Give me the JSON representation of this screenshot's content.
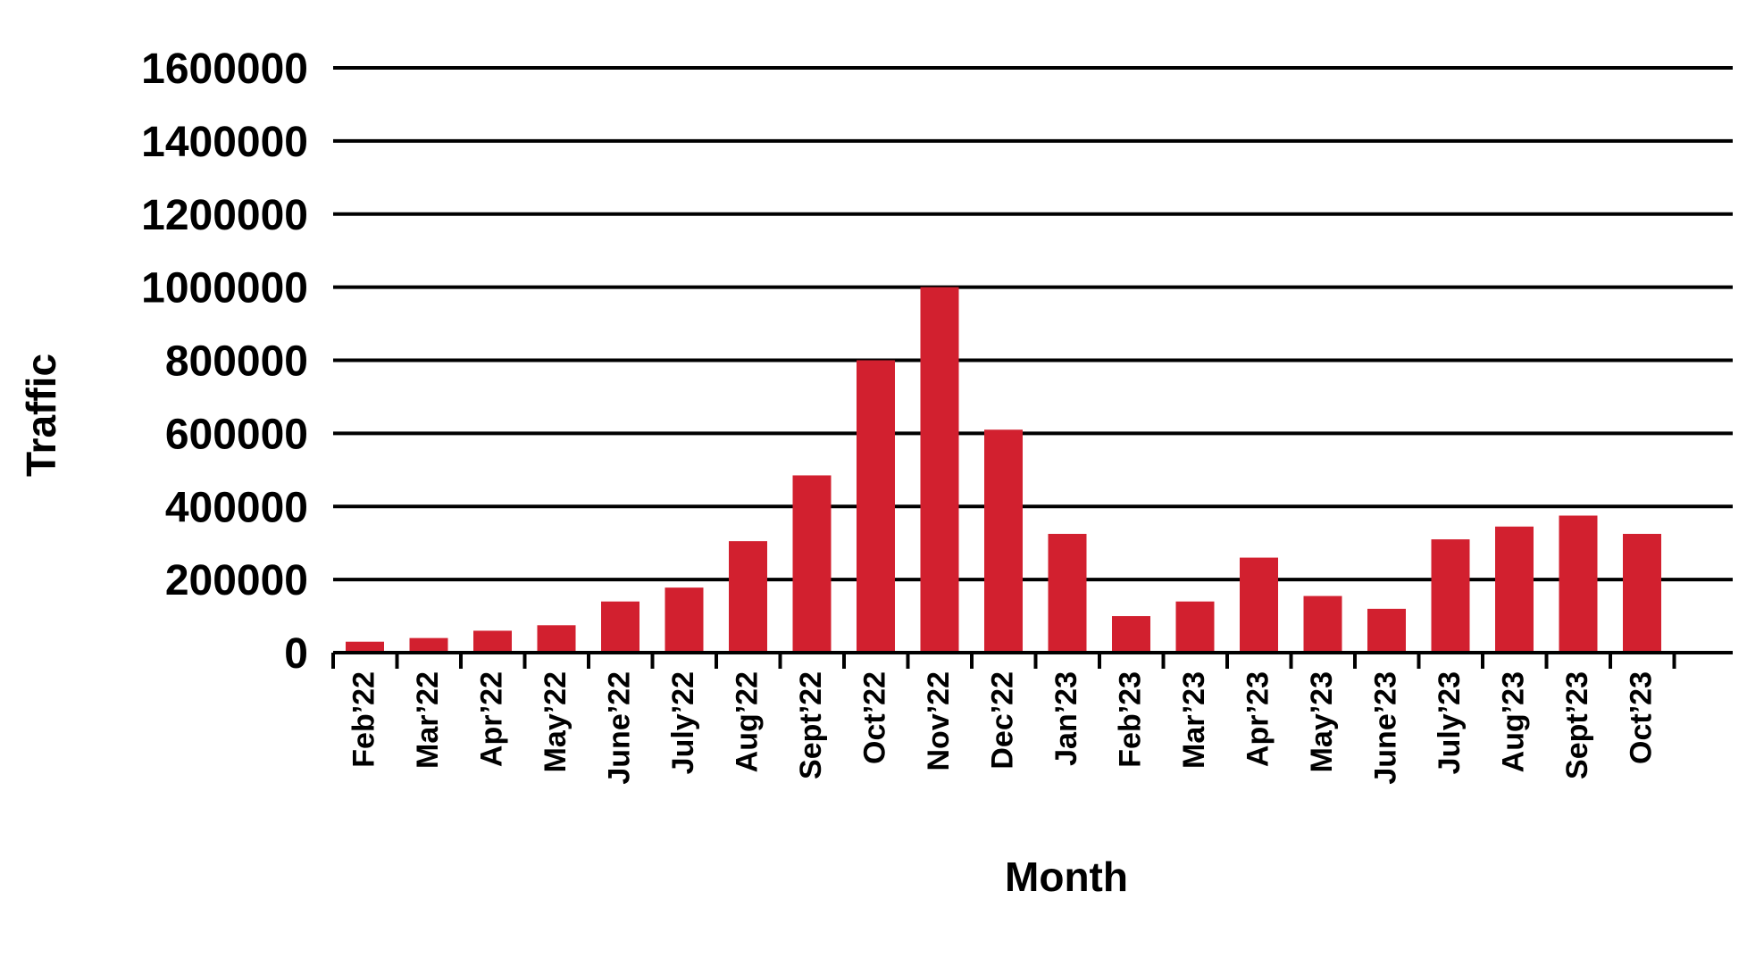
{
  "chart_data": {
    "type": "bar",
    "title": "",
    "xlabel": "Month",
    "ylabel": "Traffic",
    "ylim": [
      0,
      1600000
    ],
    "yticks": [
      0,
      200000,
      400000,
      600000,
      800000,
      1000000,
      1200000,
      1400000,
      1600000
    ],
    "ytick_labels": [
      "0",
      "200000",
      "400000",
      "600000",
      "800000",
      "1000000",
      "1200000",
      "1400000",
      "1600000"
    ],
    "grid": "horizontal",
    "legend": "none",
    "bar_color": "#d2202f",
    "categories": [
      "Feb’22",
      "Mar’22",
      "Apr’22",
      "May’22",
      "June’22",
      "July’22",
      "Aug’22",
      "Sept’22",
      "Oct’22",
      "Nov’22",
      "Dec’22",
      "Jan’23",
      "Feb’23",
      "Mar’23",
      "Apr’23",
      "May’23",
      "June’23",
      "July’23",
      "Aug’23",
      "Sept’23",
      "Oct’23"
    ],
    "values": [
      30000,
      40000,
      60000,
      75000,
      140000,
      178000,
      305000,
      485000,
      800000,
      1000000,
      610000,
      325000,
      100000,
      140000,
      260000,
      155000,
      120000,
      310000,
      345000,
      375000,
      325000
    ]
  }
}
